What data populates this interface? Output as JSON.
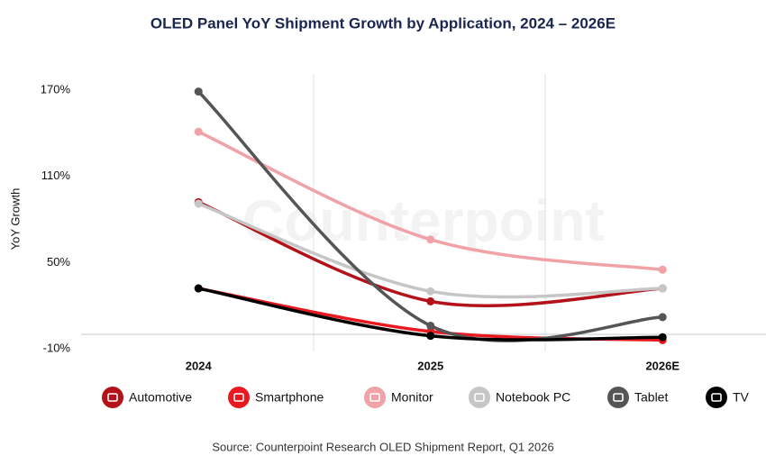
{
  "chart_data": {
    "type": "line",
    "title": "OLED Panel YoY Shipment Growth by Application, 2024 – 2026E",
    "y_label": "YoY Growth",
    "source": "Source: Counterpoint Research OLED Shipment Report, Q1 2026",
    "watermark": "Counterpoint",
    "categories": [
      "2024",
      "2025",
      "2026E"
    ],
    "ylim": [
      -10,
      170
    ],
    "yticks": [
      {
        "value": -10,
        "label": "-10%"
      },
      {
        "value": 50,
        "label": "50%"
      },
      {
        "value": 110,
        "label": "110%"
      },
      {
        "value": 170,
        "label": "170%"
      }
    ],
    "series": [
      {
        "name": "Automotive",
        "color": "#b3121a",
        "values": [
          92,
          23,
          32
        ]
      },
      {
        "name": "Smartphone",
        "color": "#e81a1f",
        "values": [
          32,
          2,
          -4
        ]
      },
      {
        "name": "Monitor",
        "color": "#f0a2a6",
        "values": [
          141,
          66,
          45
        ]
      },
      {
        "name": "Notebook PC",
        "color": "#c6c6c6",
        "values": [
          91,
          30,
          32
        ]
      },
      {
        "name": "Tablet",
        "color": "#555555",
        "values": [
          169,
          6,
          12
        ]
      },
      {
        "name": "TV",
        "color": "#000000",
        "values": [
          32,
          -1,
          -2
        ]
      }
    ]
  }
}
